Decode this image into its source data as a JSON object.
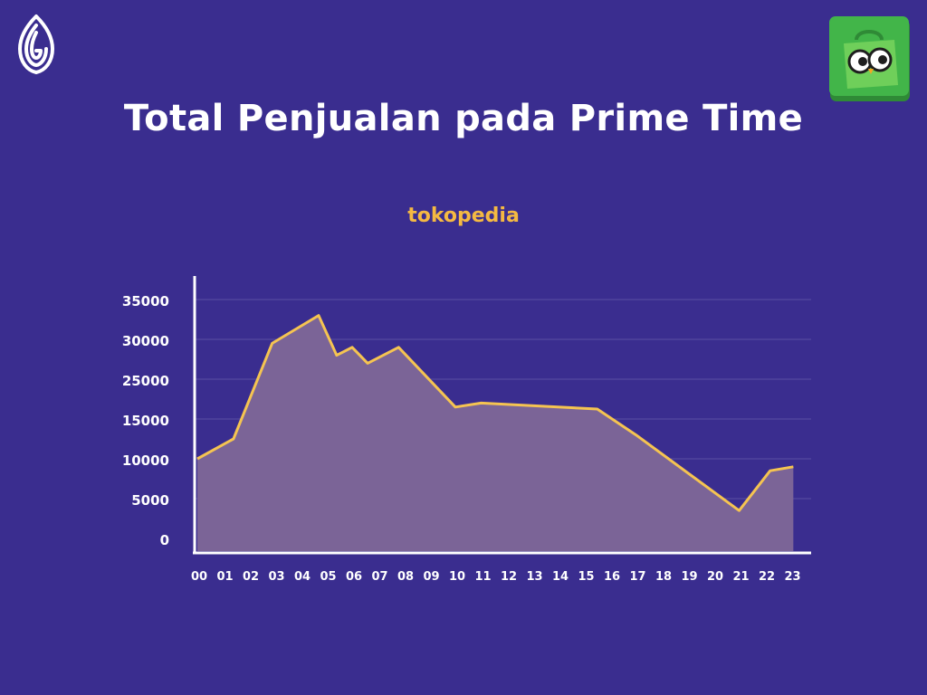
{
  "title": "Total Penjualan pada Prime Time",
  "subtitle": "tokopedia",
  "icons": {
    "left_logo": "brand-logo-icon",
    "right_logo": "tokopedia-owl-icon"
  },
  "colors": {
    "background": "#3a2d8f",
    "line": "#f5c451",
    "area": "#7b6497",
    "grid": "#5a4fa3",
    "subtitle": "#f5b942",
    "logo_green": "#42b549"
  },
  "chart_data": {
    "type": "area",
    "title": "tokopedia",
    "xlabel": "",
    "ylabel": "",
    "y_tick_labels": [
      "0",
      "5000",
      "10000",
      "15000",
      "25000",
      "30000",
      "35000"
    ],
    "x_tick_labels": [
      "00",
      "01",
      "02",
      "03",
      "04",
      "05",
      "06",
      "07",
      "08",
      "09",
      "10",
      "11",
      "12",
      "13",
      "14",
      "15",
      "16",
      "17",
      "18",
      "19",
      "20",
      "21",
      "22",
      "23"
    ],
    "grid": true,
    "series": [
      {
        "x": [
          0,
          1.4,
          2.9,
          4.7,
          5.4,
          6.0,
          6.6,
          7.8,
          10.0,
          11.0,
          15.5,
          17.0,
          21.0,
          22.2,
          23.1
        ],
        "y": [
          10000,
          12500,
          29500,
          33000,
          28000,
          29000,
          27000,
          29000,
          18000,
          19000,
          17500,
          13000,
          3500,
          8500,
          9000
        ]
      }
    ]
  }
}
